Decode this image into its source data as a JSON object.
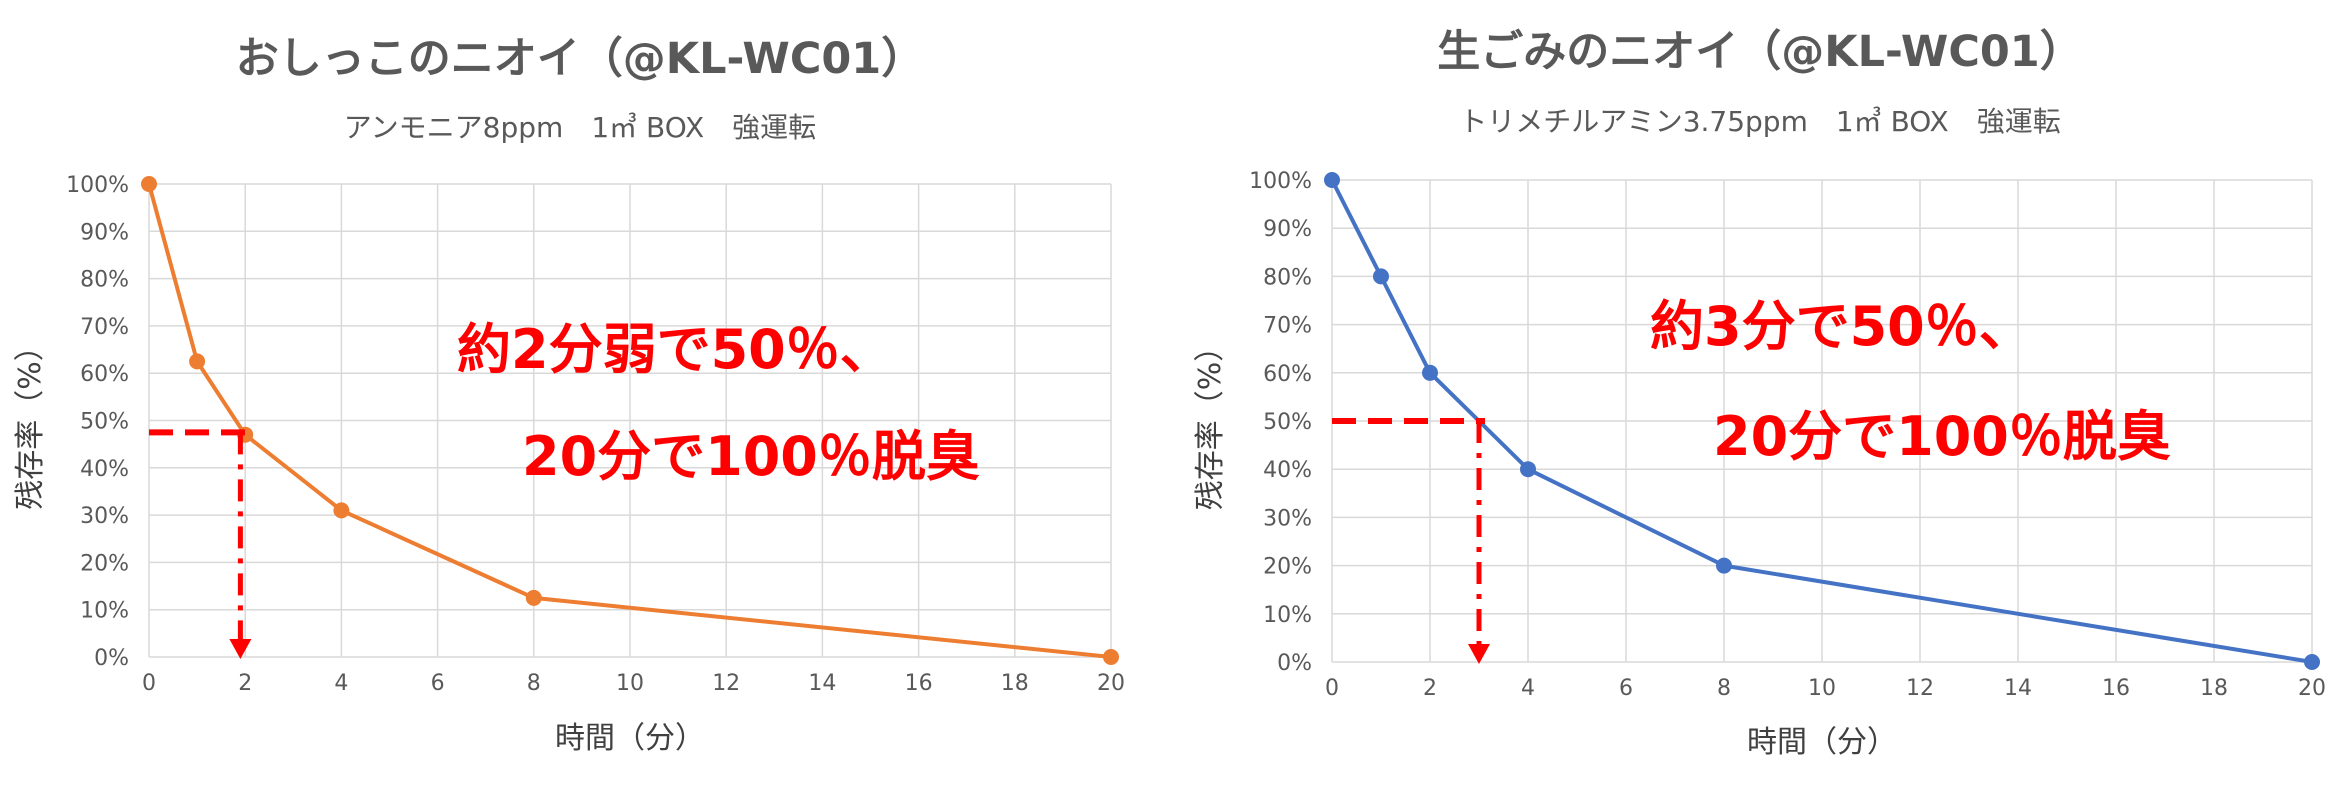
{
  "chart_data": [
    {
      "type": "line",
      "title": "おしっこのニオイ（@KL-WC01）",
      "subtitle": "アンモニア8ppm　1㎥ BOX　強運転",
      "xlabel": "時間（分）",
      "ylabel": "残存率（%）",
      "xlim": [
        0,
        20
      ],
      "ylim": [
        0,
        100
      ],
      "x_ticks": [
        "0",
        "2",
        "4",
        "6",
        "8",
        "10",
        "12",
        "14",
        "16",
        "18",
        "20"
      ],
      "y_ticks": [
        "0%",
        "10%",
        "20%",
        "30%",
        "40%",
        "50%",
        "60%",
        "70%",
        "80%",
        "90%",
        "100%"
      ],
      "grid": true,
      "series": [
        {
          "x": [
            0,
            1,
            2,
            4,
            8,
            20
          ],
          "y": [
            100,
            62.5,
            47,
            31,
            12.5,
            0
          ],
          "color": "#ed7d31"
        }
      ],
      "reference": {
        "x": 1.9,
        "y": 47.5,
        "color": "#ff0000"
      },
      "annotation": [
        "約2分弱で50％、",
        "20分で100％脱臭"
      ]
    },
    {
      "type": "line",
      "title": "生ごみのニオイ（@KL-WC01）",
      "subtitle": "トリメチルアミン3.75ppm　1㎥ BOX　強運転",
      "xlabel": "時間（分）",
      "ylabel": "残存率（%）",
      "xlim": [
        0,
        20
      ],
      "ylim": [
        0,
        100
      ],
      "x_ticks": [
        "0",
        "2",
        "4",
        "6",
        "8",
        "10",
        "12",
        "14",
        "16",
        "18",
        "20"
      ],
      "y_ticks": [
        "0%",
        "10%",
        "20%",
        "30%",
        "40%",
        "50%",
        "60%",
        "70%",
        "80%",
        "90%",
        "100%"
      ],
      "grid": true,
      "series": [
        {
          "x": [
            0,
            1,
            2,
            4,
            8,
            20
          ],
          "y": [
            100,
            80,
            60,
            40,
            20,
            0
          ],
          "color": "#4472c4"
        }
      ],
      "reference": {
        "x": 3,
        "y": 50,
        "color": "#ff0000"
      },
      "annotation": [
        "約3分で50％、",
        "20分で100％脱臭"
      ]
    }
  ]
}
